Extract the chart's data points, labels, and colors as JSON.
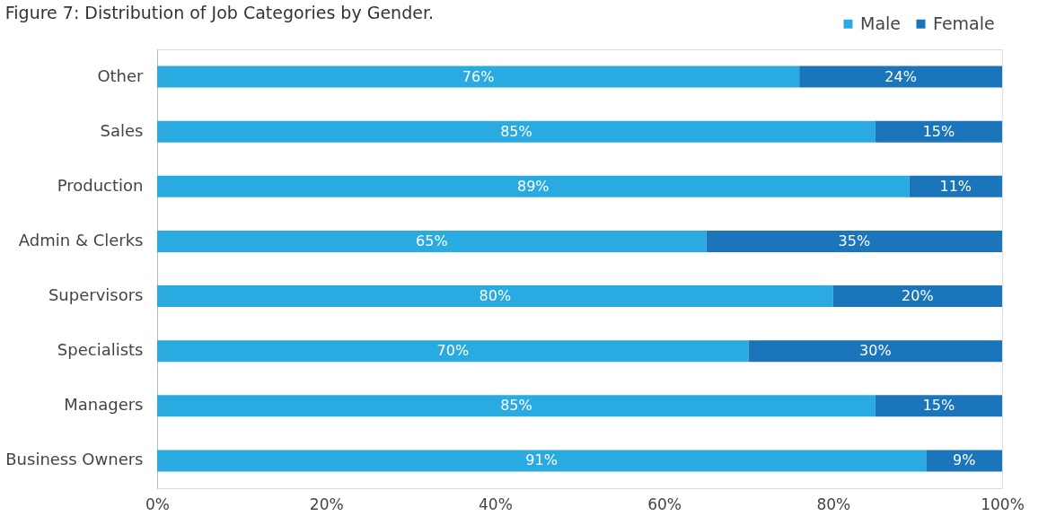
{
  "chart_data": {
    "type": "bar",
    "orientation": "horizontal",
    "stacked": true,
    "title": "Figure 7: Distribution of Job Categories by Gender.",
    "categories": [
      "Other",
      "Sales",
      "Production",
      "Admin & Clerks",
      "Supervisors",
      "Specialists",
      "Managers",
      "Business Owners"
    ],
    "series": [
      {
        "name": "Male",
        "color": "#29abe2",
        "values": [
          76,
          85,
          89,
          65,
          80,
          70,
          85,
          91
        ],
        "value_labels": [
          "76%",
          "85%",
          "89%",
          "65%",
          "80%",
          "70%",
          "85%",
          "91%"
        ]
      },
      {
        "name": "Female",
        "color": "#1b75bb",
        "values": [
          24,
          15,
          11,
          35,
          20,
          30,
          15,
          9
        ],
        "value_labels": [
          "24%",
          "15%",
          "11%",
          "35%",
          "20%",
          "30%",
          "15%",
          "9%"
        ]
      }
    ],
    "xlim": [
      0,
      100
    ],
    "xticks": [
      {
        "value": 0,
        "label": "0%"
      },
      {
        "value": 20,
        "label": "20%"
      },
      {
        "value": 40,
        "label": "40%"
      },
      {
        "value": 60,
        "label": "60%"
      },
      {
        "value": 80,
        "label": "80%"
      },
      {
        "value": 100,
        "label": "100%"
      }
    ],
    "grid": false,
    "legend": "top right"
  }
}
